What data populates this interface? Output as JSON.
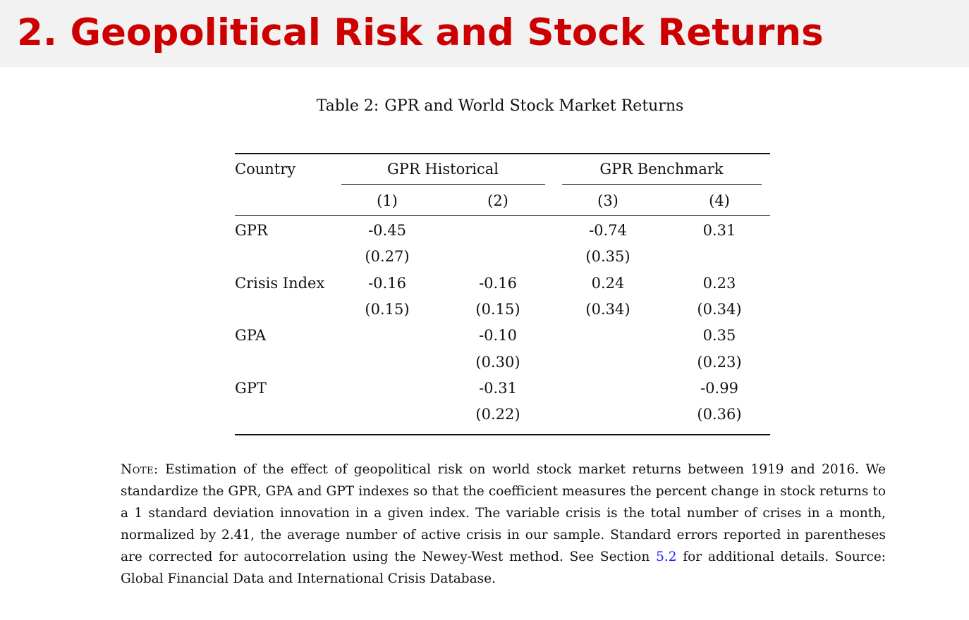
{
  "slide": {
    "title": "2. Geopolitical Risk and Stock Returns"
  },
  "table": {
    "caption_label": "Table 2:",
    "caption_text": "GPR and World Stock Market Returns",
    "header": {
      "row_label": "Country",
      "groups": [
        "GPR Historical",
        "GPR Benchmark"
      ],
      "columns": [
        "(1)",
        "(2)",
        "(3)",
        "(4)"
      ]
    },
    "rows": [
      {
        "label": "GPR",
        "coef": [
          "-0.45",
          "",
          "-0.74",
          "0.31"
        ],
        "se": [
          "(0.27)",
          "",
          "(0.35)",
          ""
        ]
      },
      {
        "label": "Crisis Index",
        "coef": [
          "-0.16",
          "-0.16",
          "0.24",
          "0.23"
        ],
        "se": [
          "(0.15)",
          "(0.15)",
          "(0.34)",
          "(0.34)"
        ]
      },
      {
        "label": "GPA",
        "coef": [
          "",
          "-0.10",
          "",
          "0.35"
        ],
        "se": [
          "",
          "(0.30)",
          "",
          "(0.23)"
        ]
      },
      {
        "label": "GPT",
        "coef": [
          "",
          "-0.31",
          "",
          "-0.99"
        ],
        "se": [
          "",
          "(0.22)",
          "",
          "(0.36)"
        ]
      }
    ]
  },
  "note": {
    "lead": "Note:",
    "text_before_link": "Estimation of the effect of geopolitical risk on world stock market returns between 1919 and 2016. We standardize the GPR, GPA and GPT indexes so that the coefficient measures the percent change in stock returns to a 1 standard deviation innovation in a given index. The variable crisis is the total number of crises in a month, normalized by 2.41, the average number of active crisis in our sample. Standard errors reported in parentheses are corrected for autocorrelation using the Newey-West method. See Section",
    "link_text": "5.2",
    "text_after_link": "for additional details. Source: Global Financial Data and International Crisis Database."
  }
}
